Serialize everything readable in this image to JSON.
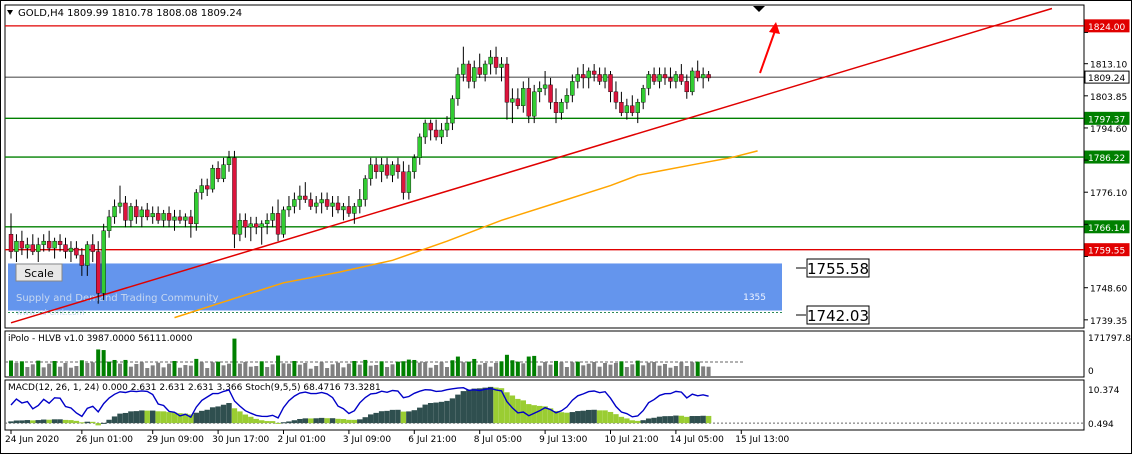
{
  "header": {
    "title": "GOLD,H4  1809.99 1810.78 1808.08 1809.24",
    "dropdown_icon": "triangle-down-icon"
  },
  "scale_button": {
    "label": "Scale"
  },
  "zone": {
    "watermark": "Supply and Demand Trading Community",
    "watermark2": "www.sd-cmt.com",
    "count_label": "1355",
    "color": "#6495ed"
  },
  "price_boxes": {
    "upper": "1755.58",
    "lower": "1742.03"
  },
  "colors": {
    "bull": "#32cd32",
    "bear": "#dc143c",
    "support": "#008000",
    "resistance": "#e00000",
    "ma": "#ffa500",
    "trendline": "#e00000",
    "arrow": "#ff0000"
  },
  "chart_data": [
    {
      "type": "candlestick",
      "symbol": "GOLD",
      "timeframe": "H4",
      "ylim": [
        1737,
        1830
      ],
      "yticks": [
        {
          "v": 1822.1,
          "label": "1822.10"
        },
        {
          "v": 1813.1,
          "label": "1813.10"
        },
        {
          "v": 1803.85,
          "label": "1803.85"
        },
        {
          "v": 1794.6,
          "label": "1794.60"
        },
        {
          "v": 1785.35,
          "label": "1785.35"
        },
        {
          "v": 1776.1,
          "label": "1776.10"
        },
        {
          "v": 1766.85,
          "label": "1766.85"
        },
        {
          "v": 1757.6,
          "label": "1757.60"
        },
        {
          "v": 1748.6,
          "label": "1748.60"
        },
        {
          "v": 1739.35,
          "label": "1739.35"
        }
      ],
      "levels": [
        {
          "v": 1824.0,
          "label": "1824.00",
          "kind": "resistance"
        },
        {
          "v": 1809.24,
          "label": "1809.24",
          "kind": "current"
        },
        {
          "v": 1797.37,
          "label": "1797.37",
          "kind": "support"
        },
        {
          "v": 1786.22,
          "label": "1786.22",
          "kind": "support"
        },
        {
          "v": 1766.14,
          "label": "1766.14",
          "kind": "support"
        },
        {
          "v": 1759.55,
          "label": "1759.55",
          "kind": "resistance"
        }
      ],
      "zone_range": [
        1742.03,
        1755.58
      ],
      "xticks": [
        "24 Jun 2020",
        "26 Jun 01:00",
        "29 Jun 09:00",
        "30 Jun 17:00",
        "2 Jul 01:00",
        "3 Jul 09:00",
        "6 Jul 21:00",
        "8 Jul 05:00",
        "9 Jul 13:00",
        "10 Jul 21:00",
        "14 Jul 05:00",
        "15 Jul 13:00"
      ],
      "xtick_index": [
        0,
        13,
        26,
        38,
        50,
        62,
        74,
        86,
        98,
        110,
        122,
        134
      ],
      "trendline": {
        "from": [
          0,
          1738.5
        ],
        "to": [
          191,
          1829
        ]
      },
      "moving_average": [
        [
          30,
          1740
        ],
        [
          40,
          1745
        ],
        [
          50,
          1750
        ],
        [
          60,
          1753
        ],
        [
          70,
          1756.5
        ],
        [
          80,
          1762
        ],
        [
          90,
          1768
        ],
        [
          100,
          1773
        ],
        [
          110,
          1778
        ],
        [
          115,
          1781
        ],
        [
          120,
          1782.5
        ],
        [
          125,
          1784
        ],
        [
          132,
          1786
        ],
        [
          137,
          1788
        ]
      ],
      "candles": [
        [
          1764,
          1770,
          1757,
          1759
        ],
        [
          1759,
          1764,
          1756,
          1762
        ],
        [
          1762,
          1765,
          1758,
          1760
        ],
        [
          1760,
          1763,
          1757,
          1761
        ],
        [
          1761,
          1764,
          1758,
          1759
        ],
        [
          1759,
          1763,
          1756,
          1761
        ],
        [
          1761,
          1764,
          1759,
          1762
        ],
        [
          1762,
          1765,
          1759,
          1760
        ],
        [
          1760,
          1763,
          1757,
          1762
        ],
        [
          1762,
          1764,
          1759,
          1761
        ],
        [
          1761,
          1763,
          1757,
          1759
        ],
        [
          1759,
          1762,
          1756,
          1760
        ],
        [
          1760,
          1762,
          1757,
          1758
        ],
        [
          1758,
          1760,
          1752,
          1755
        ],
        [
          1755,
          1762,
          1752,
          1761
        ],
        [
          1761,
          1764,
          1756,
          1759
        ],
        [
          1759,
          1762,
          1744,
          1747
        ],
        [
          1747,
          1767,
          1745,
          1765
        ],
        [
          1765,
          1771,
          1763,
          1769
        ],
        [
          1769,
          1774,
          1767,
          1772
        ],
        [
          1772,
          1778,
          1770,
          1773
        ],
        [
          1773,
          1775,
          1766,
          1768
        ],
        [
          1768,
          1773,
          1766,
          1772
        ],
        [
          1772,
          1774,
          1767,
          1769
        ],
        [
          1769,
          1772,
          1766,
          1771
        ],
        [
          1771,
          1773,
          1768,
          1769
        ],
        [
          1769,
          1772,
          1767,
          1770
        ],
        [
          1770,
          1772,
          1767,
          1768
        ],
        [
          1768,
          1771,
          1766,
          1770
        ],
        [
          1770,
          1772,
          1766,
          1768
        ],
        [
          1768,
          1771,
          1765,
          1769
        ],
        [
          1769,
          1771,
          1767,
          1768
        ],
        [
          1768,
          1770,
          1766,
          1769
        ],
        [
          1769,
          1771,
          1763,
          1767
        ],
        [
          1767,
          1777,
          1765,
          1776
        ],
        [
          1776,
          1780,
          1774,
          1778
        ],
        [
          1778,
          1780,
          1775,
          1777
        ],
        [
          1777,
          1784,
          1776,
          1783
        ],
        [
          1783,
          1785,
          1779,
          1780
        ],
        [
          1780,
          1786,
          1779,
          1784
        ],
        [
          1784,
          1788,
          1782,
          1786
        ],
        [
          1786,
          1788,
          1760,
          1764
        ],
        [
          1764,
          1770,
          1762,
          1768
        ],
        [
          1768,
          1770,
          1763,
          1766
        ],
        [
          1766,
          1769,
          1762,
          1767
        ],
        [
          1767,
          1769,
          1764,
          1766
        ],
        [
          1766,
          1768,
          1761,
          1767
        ],
        [
          1767,
          1770,
          1764,
          1768
        ],
        [
          1768,
          1772,
          1766,
          1770
        ],
        [
          1770,
          1774,
          1762,
          1764
        ],
        [
          1764,
          1772,
          1763,
          1771
        ],
        [
          1771,
          1775,
          1769,
          1772
        ],
        [
          1772,
          1776,
          1770,
          1774
        ],
        [
          1774,
          1778,
          1771,
          1775
        ],
        [
          1775,
          1779,
          1773,
          1774
        ],
        [
          1774,
          1776,
          1771,
          1772
        ],
        [
          1772,
          1775,
          1770,
          1773
        ],
        [
          1773,
          1776,
          1770,
          1774
        ],
        [
          1774,
          1776,
          1771,
          1772
        ],
        [
          1772,
          1775,
          1769,
          1773
        ],
        [
          1773,
          1775,
          1770,
          1771
        ],
        [
          1771,
          1773,
          1768,
          1772
        ],
        [
          1772,
          1775,
          1769,
          1770
        ],
        [
          1770,
          1773,
          1767,
          1772
        ],
        [
          1772,
          1777,
          1770,
          1774
        ],
        [
          1774,
          1781,
          1772,
          1780
        ],
        [
          1780,
          1786,
          1778,
          1784
        ],
        [
          1784,
          1786,
          1780,
          1782
        ],
        [
          1782,
          1786,
          1779,
          1784
        ],
        [
          1784,
          1786,
          1780,
          1781
        ],
        [
          1781,
          1785,
          1779,
          1784
        ],
        [
          1784,
          1786,
          1780,
          1782
        ],
        [
          1782,
          1785,
          1774,
          1776
        ],
        [
          1776,
          1784,
          1774,
          1782
        ],
        [
          1782,
          1787,
          1780,
          1786
        ],
        [
          1786,
          1793,
          1784,
          1792
        ],
        [
          1792,
          1797,
          1790,
          1796
        ],
        [
          1796,
          1797,
          1791,
          1794
        ],
        [
          1794,
          1797,
          1791,
          1792
        ],
        [
          1792,
          1796,
          1790,
          1794
        ],
        [
          1794,
          1798,
          1792,
          1796
        ],
        [
          1796,
          1804,
          1794,
          1803
        ],
        [
          1803,
          1812,
          1801,
          1810
        ],
        [
          1810,
          1818,
          1808,
          1813
        ],
        [
          1813,
          1814,
          1806,
          1808
        ],
        [
          1808,
          1814,
          1806,
          1812
        ],
        [
          1812,
          1816,
          1809,
          1810
        ],
        [
          1810,
          1814,
          1808,
          1813
        ],
        [
          1813,
          1817,
          1810,
          1815
        ],
        [
          1815,
          1818,
          1810,
          1812
        ],
        [
          1812,
          1815,
          1808,
          1813
        ],
        [
          1813,
          1815,
          1797,
          1802
        ],
        [
          1802,
          1806,
          1796,
          1803
        ],
        [
          1803,
          1806,
          1800,
          1801
        ],
        [
          1801,
          1808,
          1799,
          1806
        ],
        [
          1806,
          1809,
          1796,
          1798
        ],
        [
          1798,
          1807,
          1796,
          1805
        ],
        [
          1805,
          1808,
          1802,
          1806
        ],
        [
          1806,
          1811,
          1804,
          1807
        ],
        [
          1807,
          1809,
          1800,
          1802
        ],
        [
          1802,
          1806,
          1796,
          1799
        ],
        [
          1799,
          1803,
          1797,
          1802
        ],
        [
          1802,
          1806,
          1800,
          1804
        ],
        [
          1804,
          1810,
          1802,
          1808
        ],
        [
          1808,
          1812,
          1806,
          1810
        ],
        [
          1810,
          1813,
          1806,
          1809
        ],
        [
          1809,
          1812,
          1806,
          1811
        ],
        [
          1811,
          1813,
          1808,
          1810
        ],
        [
          1810,
          1812,
          1807,
          1808
        ],
        [
          1808,
          1812,
          1806,
          1810
        ],
        [
          1810,
          1811,
          1802,
          1805
        ],
        [
          1805,
          1808,
          1800,
          1802
        ],
        [
          1802,
          1805,
          1798,
          1799
        ],
        [
          1799,
          1803,
          1797,
          1801
        ],
        [
          1801,
          1804,
          1798,
          1799
        ],
        [
          1799,
          1803,
          1796,
          1802
        ],
        [
          1802,
          1807,
          1800,
          1806
        ],
        [
          1806,
          1811,
          1804,
          1810
        ],
        [
          1810,
          1812,
          1807,
          1808
        ],
        [
          1808,
          1812,
          1806,
          1810
        ],
        [
          1810,
          1812,
          1807,
          1809
        ],
        [
          1809,
          1812,
          1806,
          1808
        ],
        [
          1808,
          1811,
          1806,
          1810
        ],
        [
          1810,
          1813,
          1807,
          1808
        ],
        [
          1808,
          1810,
          1803,
          1805
        ],
        [
          1805,
          1812,
          1804,
          1811
        ],
        [
          1811,
          1814,
          1808,
          1809
        ],
        [
          1809,
          1812,
          1806,
          1810
        ],
        [
          1810,
          1811,
          1808,
          1809
        ]
      ]
    },
    {
      "type": "histogram",
      "title": "iPolo - HLVB v1.0 3987.0000 56111.0000",
      "ylim": [
        0,
        171797.85
      ],
      "yticks": [
        {
          "v": 171797.85,
          "label": "171797.85"
        },
        {
          "v": 0,
          "label": "0"
        }
      ],
      "threshold": 56111,
      "colors": {
        "green": "#008000",
        "lime": "#00ff00",
        "gray": "#808080",
        "magenta": "#ff00ff"
      }
    },
    {
      "type": "area",
      "title": "MACD(12, 26, 1, 24) 0.000 2.631 2.631 2.631 3.366 Stoch(9,5,5) 68.4716 73.3281",
      "ylim": [
        -1.5,
        13
      ],
      "yticks": [
        {
          "v": 10.374,
          "label": "10.374"
        },
        {
          "v": 0.494,
          "label": "0.494"
        }
      ],
      "stoch_color": "#0000c8",
      "bar_colors": {
        "dark": "#2f4f4f",
        "light": "#9acd32"
      }
    }
  ]
}
